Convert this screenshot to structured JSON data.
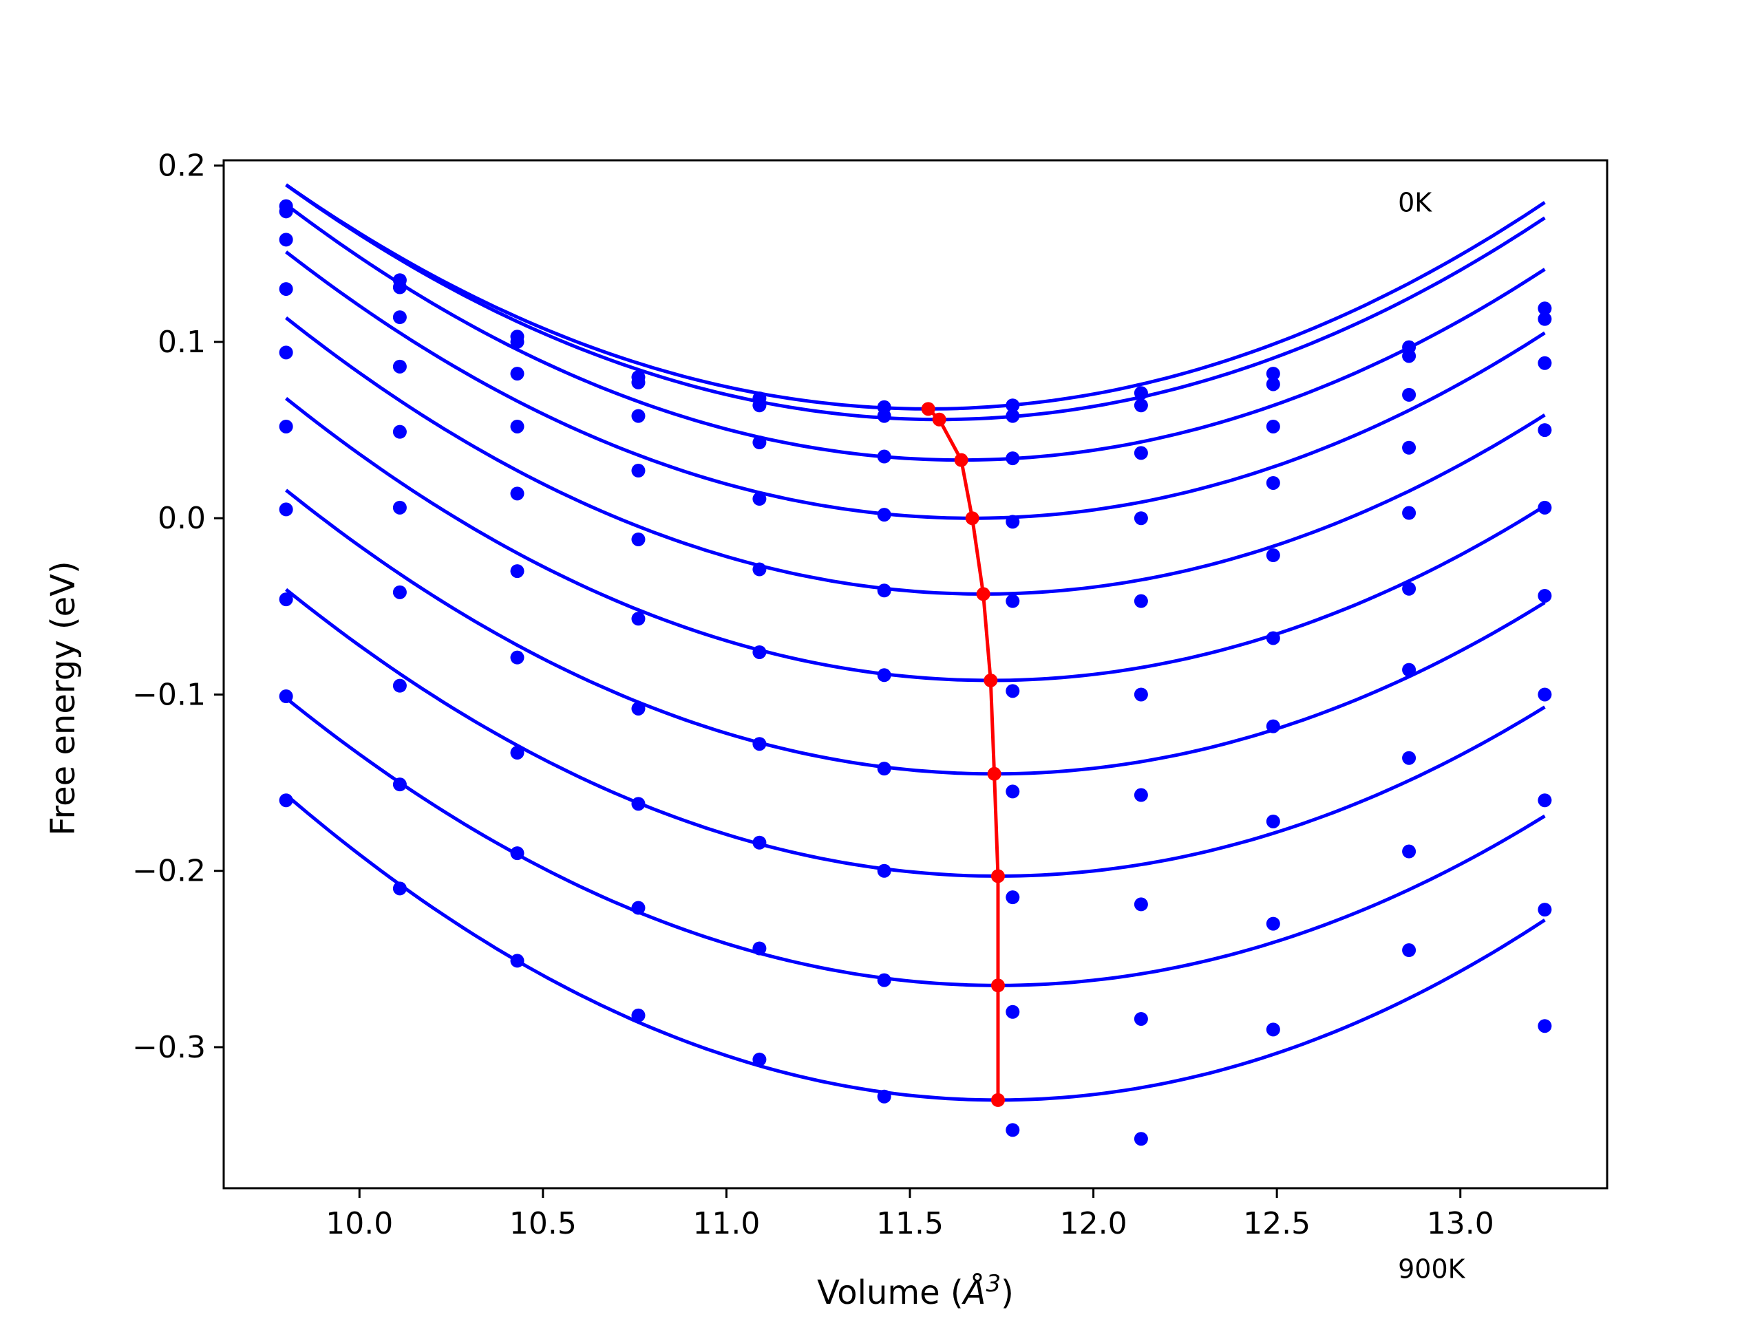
{
  "chart_data": {
    "type": "scatter",
    "xlabel_text": "Volume (",
    "xlabel_symbol": "Å",
    "xlabel_exp": "3",
    "xlabel_close": ")",
    "ylabel": "Free energy (eV)",
    "xlim": [
      9.63,
      13.4
    ],
    "ylim": [
      -0.38,
      0.203
    ],
    "grid": false,
    "x_ticks": [
      10.0,
      10.5,
      11.0,
      11.5,
      12.0,
      12.5,
      13.0
    ],
    "x_tick_labels": [
      "10.0",
      "10.5",
      "11.0",
      "11.5",
      "12.0",
      "12.5",
      "13.0"
    ],
    "y_ticks": [
      0.2,
      0.1,
      0.0,
      -0.1,
      -0.2,
      -0.3
    ],
    "y_tick_labels": [
      "0.2",
      "0.1",
      "0.0",
      "−0.1",
      "−0.2",
      "−0.3"
    ],
    "annotations": [
      {
        "text": "0K",
        "x": 12.83,
        "y": 0.174
      },
      {
        "text": "900K",
        "x": 12.83,
        "y": -0.431
      }
    ],
    "colors": {
      "series": "#0000ff",
      "minima": "#ff0000",
      "axes": "#000000"
    },
    "x": [
      9.8,
      10.11,
      10.43,
      10.76,
      11.09,
      11.43,
      11.78,
      12.13,
      12.49,
      12.86,
      13.23
    ],
    "series": [
      {
        "points": [
          0.177,
          0.135,
          0.103,
          0.08,
          0.068,
          0.063,
          0.064,
          0.071,
          0.082,
          0.097,
          0.119
        ],
        "fit": {
          "vmin": 11.55,
          "fmin": 0.062,
          "curv": 0.0415
        }
      },
      {
        "points": [
          0.174,
          0.131,
          0.1,
          0.077,
          0.064,
          0.058,
          0.058,
          0.064,
          0.076,
          0.092,
          0.113
        ],
        "fit": {
          "vmin": 11.58,
          "fmin": 0.056,
          "curv": 0.042
        }
      },
      {
        "points": [
          0.158,
          0.114,
          0.082,
          0.058,
          0.043,
          0.035,
          0.034,
          0.037,
          0.052,
          0.07,
          0.088
        ],
        "fit": {
          "vmin": 11.64,
          "fmin": 0.033,
          "curv": 0.0428
        }
      },
      {
        "points": [
          0.13,
          0.086,
          0.052,
          0.027,
          0.011,
          0.002,
          -0.002,
          0.0,
          0.02,
          0.04,
          0.05
        ],
        "fit": {
          "vmin": 11.67,
          "fmin": 0.0,
          "curv": 0.0432
        }
      },
      {
        "points": [
          0.094,
          0.049,
          0.014,
          -0.012,
          -0.029,
          -0.041,
          -0.047,
          -0.047,
          -0.021,
          0.003,
          0.006
        ],
        "fit": {
          "vmin": 11.7,
          "fmin": -0.043,
          "curv": 0.0434
        }
      },
      {
        "points": [
          0.052,
          0.006,
          -0.03,
          -0.057,
          -0.076,
          -0.089,
          -0.098,
          -0.1,
          -0.068,
          -0.04,
          -0.044
        ],
        "fit": {
          "vmin": 11.72,
          "fmin": -0.092,
          "curv": 0.0434
        }
      },
      {
        "points": [
          0.005,
          -0.042,
          -0.079,
          -0.108,
          -0.128,
          -0.142,
          -0.155,
          -0.157,
          -0.118,
          -0.086,
          -0.1
        ],
        "fit": {
          "vmin": 11.73,
          "fmin": -0.145,
          "curv": 0.0432
        }
      },
      {
        "points": [
          -0.046,
          -0.095,
          -0.133,
          -0.162,
          -0.184,
          -0.2,
          -0.215,
          -0.219,
          -0.172,
          -0.136,
          -0.16
        ],
        "fit": {
          "vmin": 11.74,
          "fmin": -0.203,
          "curv": 0.0432
        }
      },
      {
        "points": [
          -0.101,
          -0.151,
          -0.19,
          -0.221,
          -0.244,
          -0.262,
          -0.28,
          -0.284,
          -0.23,
          -0.189,
          -0.222
        ],
        "fit": {
          "vmin": 11.74,
          "fmin": -0.265,
          "curv": 0.0433
        }
      },
      {
        "points": [
          -0.16,
          -0.21,
          -0.251,
          -0.282,
          -0.307,
          -0.328,
          -0.347,
          -0.352,
          -0.29,
          -0.245,
          -0.288
        ],
        "fit": {
          "vmin": 11.74,
          "fmin": -0.33,
          "curv": 0.046
        }
      }
    ],
    "minima": {
      "x": [
        11.55,
        11.58,
        11.64,
        11.67,
        11.7,
        11.72,
        11.73,
        11.74,
        11.74,
        11.74
      ],
      "y": [
        0.062,
        0.056,
        0.033,
        0.0,
        -0.043,
        -0.092,
        -0.145,
        -0.203,
        -0.265,
        -0.33
      ]
    }
  }
}
